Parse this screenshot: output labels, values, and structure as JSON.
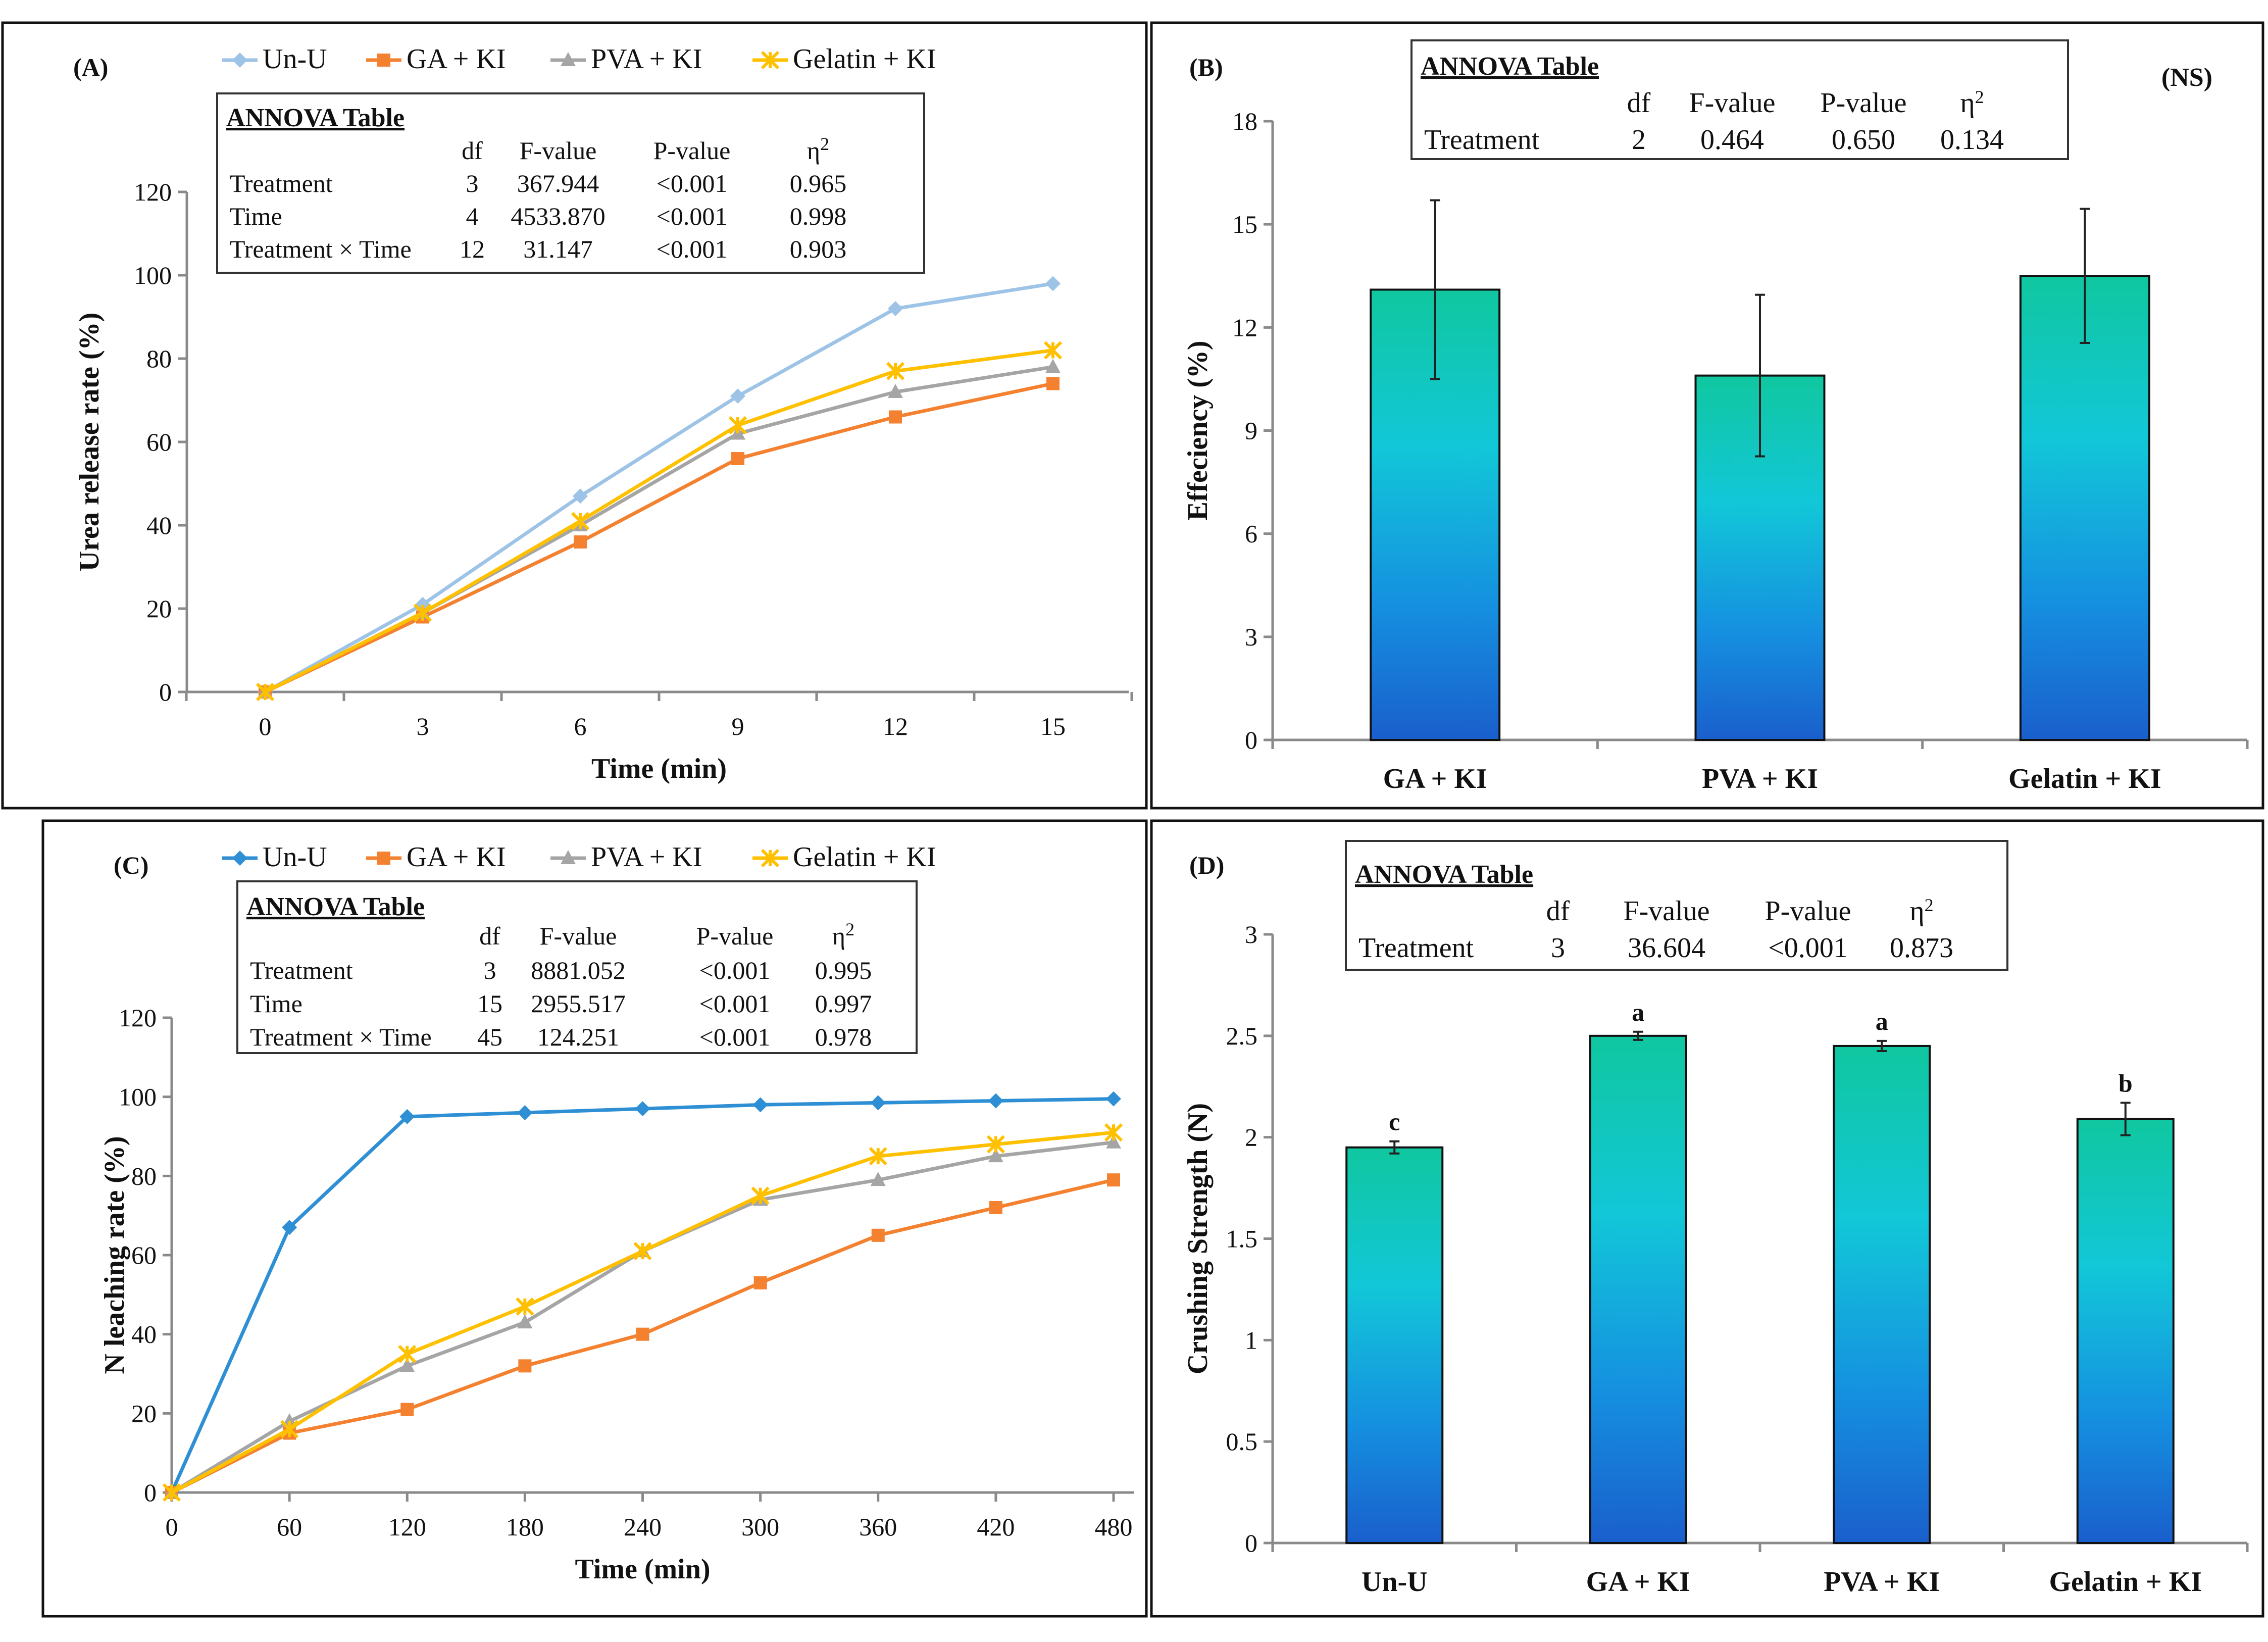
{
  "chart_data": [
    {
      "panel": "(A)",
      "type": "line",
      "title": "",
      "xlabel": "Time (min)",
      "ylabel": "Urea release rate (%)",
      "x": [
        0,
        3,
        6,
        9,
        12,
        15
      ],
      "xticks": [
        "0",
        "3",
        "6",
        "9",
        "12",
        "15"
      ],
      "ylim": [
        0,
        120
      ],
      "yticks": [
        "0",
        "20",
        "40",
        "60",
        "80",
        "100",
        "120"
      ],
      "legend_position": "top",
      "series": [
        {
          "name": "Un-U",
          "values": [
            0,
            21,
            47,
            71,
            92,
            98
          ],
          "color": "#9DC3E6",
          "marker": "diamond"
        },
        {
          "name": "GA + KI",
          "values": [
            0,
            18,
            36,
            56,
            66,
            74
          ],
          "color": "#F4812F",
          "marker": "square"
        },
        {
          "name": "PVA + KI",
          "values": [
            0,
            19,
            40,
            62,
            72,
            78
          ],
          "color": "#A5A5A5",
          "marker": "triangle"
        },
        {
          "name": "Gelatin + KI",
          "values": [
            0,
            19,
            41,
            64,
            77,
            82
          ],
          "color": "#FFC000",
          "marker": "star"
        }
      ],
      "annova": {
        "title": "ANNOVA Table",
        "headers": [
          "",
          "df",
          "F-value",
          "P-value",
          "η2"
        ],
        "rows": [
          [
            "Treatment",
            "3",
            "367.944",
            "<0.001",
            "0.965"
          ],
          [
            "Time",
            "4",
            "4533.870",
            "<0.001",
            "0.998"
          ],
          [
            "Treatment × Time",
            "12",
            "31.147",
            "<0.001",
            "0.903"
          ]
        ]
      }
    },
    {
      "panel": "(B)",
      "type": "bar",
      "title": "",
      "xlabel": "",
      "ylabel": "Effeciency (%)",
      "categories": [
        "GA + KI",
        "PVA + KI",
        "Gelatin + KI"
      ],
      "values": [
        13.1,
        10.6,
        13.5
      ],
      "errors": [
        2.6,
        2.35,
        1.95
      ],
      "ylim": [
        0,
        18
      ],
      "yticks": [
        "0",
        "3",
        "6",
        "9",
        "12",
        "15",
        "18"
      ],
      "significance_note": "(NS)",
      "annova": {
        "title": "ANNOVA Table",
        "headers": [
          "",
          "df",
          "F-value",
          "P-value",
          "η2"
        ],
        "rows": [
          [
            "Treatment",
            "2",
            "0.464",
            "0.650",
            "0.134"
          ]
        ]
      }
    },
    {
      "panel": "(C)",
      "type": "line",
      "title": "",
      "xlabel": "Time (min)",
      "ylabel": "N leaching rate (%)",
      "x": [
        0,
        60,
        120,
        180,
        240,
        300,
        360,
        420,
        480
      ],
      "xticks": [
        "0",
        "60",
        "120",
        "180",
        "240",
        "300",
        "360",
        "420",
        "480"
      ],
      "ylim": [
        0,
        120
      ],
      "yticks": [
        "0",
        "20",
        "40",
        "60",
        "80",
        "100",
        "120"
      ],
      "legend_position": "top",
      "series": [
        {
          "name": "Un-U",
          "values": [
            0,
            67,
            95,
            96,
            97,
            98,
            98.5,
            99,
            99.5
          ],
          "color": "#2E8FD4",
          "marker": "diamond"
        },
        {
          "name": "GA + KI",
          "values": [
            0,
            15,
            21,
            32,
            40,
            53,
            65,
            72,
            79
          ],
          "color": "#F4812F",
          "marker": "square"
        },
        {
          "name": "PVA + KI",
          "values": [
            0,
            18,
            32,
            43,
            61,
            74,
            79,
            85,
            88.5
          ],
          "color": "#A5A5A5",
          "marker": "triangle"
        },
        {
          "name": "Gelatin + KI",
          "values": [
            0,
            16,
            35,
            47,
            61,
            75,
            85,
            88,
            91
          ],
          "color": "#FFC000",
          "marker": "star"
        }
      ],
      "annova": {
        "title": "ANNOVA Table",
        "headers": [
          "",
          "df",
          "F-value",
          "P-value",
          "η2"
        ],
        "rows": [
          [
            "Treatment",
            "3",
            "8881.052",
            "<0.001",
            "0.995"
          ],
          [
            "Time",
            "15",
            "2955.517",
            "<0.001",
            "0.997"
          ],
          [
            "Treatment × Time",
            "45",
            "124.251",
            "<0.001",
            "0.978"
          ]
        ]
      }
    },
    {
      "panel": "(D)",
      "type": "bar",
      "title": "",
      "xlabel": "",
      "ylabel": "Crushing Strength (N)",
      "categories": [
        "Un-U",
        "GA + KI",
        "PVA + KI",
        "Gelatin + KI"
      ],
      "values": [
        1.95,
        2.5,
        2.45,
        2.09
      ],
      "errors": [
        0.03,
        0.02,
        0.025,
        0.08
      ],
      "letters": [
        "c",
        "a",
        "a",
        "b"
      ],
      "ylim": [
        0,
        3
      ],
      "yticks": [
        "0",
        "0.5",
        "1",
        "1.5",
        "2",
        "2.5",
        "3"
      ],
      "annova": {
        "title": "ANNOVA Table",
        "headers": [
          "",
          "df",
          "F-value",
          "P-value",
          "η2"
        ],
        "rows": [
          [
            "Treatment",
            "3",
            "36.604",
            "<0.001",
            "0.873"
          ]
        ]
      }
    }
  ]
}
